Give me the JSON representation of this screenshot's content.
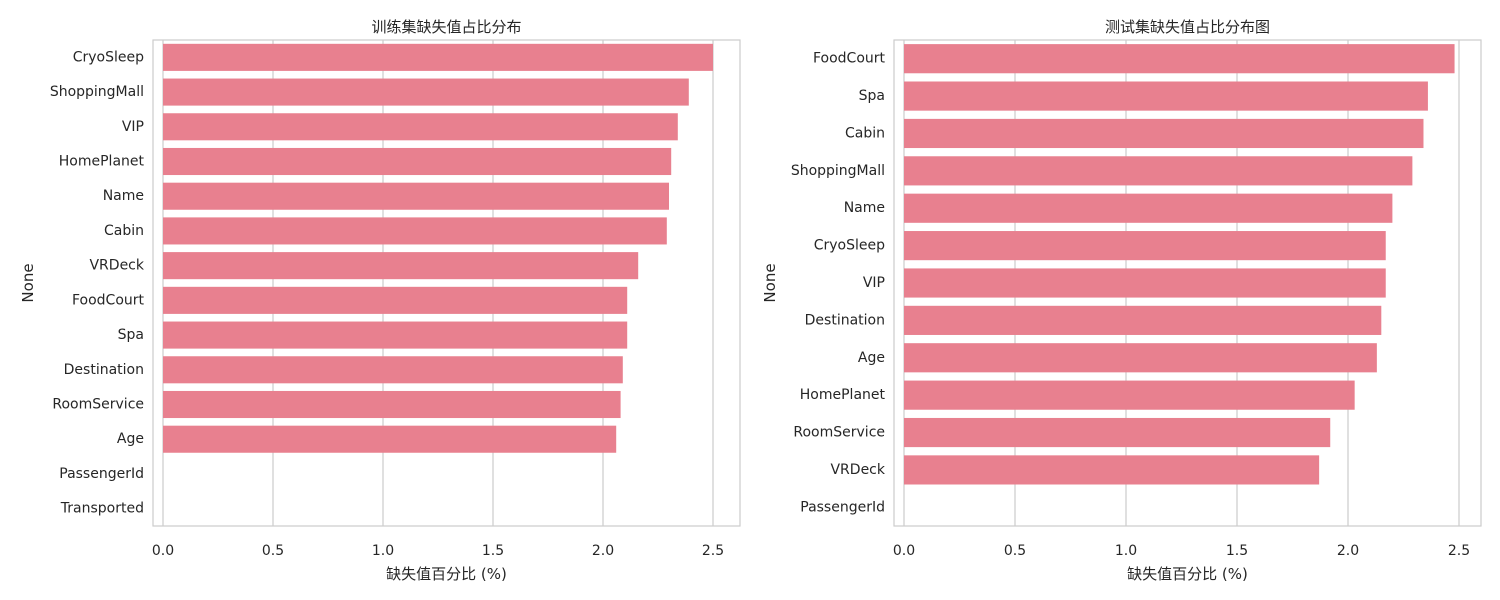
{
  "chart_data": [
    {
      "type": "bar",
      "orientation": "horizontal",
      "title": "训练集缺失值占比分布",
      "xlabel": "缺失值百分比 (%)",
      "ylabel": "None",
      "xlim": [
        0,
        2.62
      ],
      "xticks": [
        "0.0",
        "0.5",
        "1.0",
        "1.5",
        "2.0",
        "2.5"
      ],
      "grid": true,
      "bar_color": "#e8808f",
      "categories": [
        "CryoSleep",
        "ShoppingMall",
        "VIP",
        "HomePlanet",
        "Name",
        "Cabin",
        "VRDeck",
        "FoodCourt",
        "Spa",
        "Destination",
        "RoomService",
        "Age",
        "PassengerId",
        "Transported"
      ],
      "values": [
        2.5,
        2.39,
        2.34,
        2.31,
        2.3,
        2.29,
        2.16,
        2.11,
        2.11,
        2.09,
        2.08,
        2.06,
        0,
        0
      ]
    },
    {
      "type": "bar",
      "orientation": "horizontal",
      "title": "测试集缺失值占比分布图",
      "xlabel": "缺失值百分比 (%)",
      "ylabel": "None",
      "xlim": [
        0,
        2.6
      ],
      "xticks": [
        "0.0",
        "0.5",
        "1.0",
        "1.5",
        "2.0",
        "2.5"
      ],
      "grid": true,
      "bar_color": "#e8808f",
      "categories": [
        "FoodCourt",
        "Spa",
        "Cabin",
        "ShoppingMall",
        "Name",
        "CryoSleep",
        "VIP",
        "Destination",
        "Age",
        "HomePlanet",
        "RoomService",
        "VRDeck",
        "PassengerId"
      ],
      "values": [
        2.48,
        2.36,
        2.34,
        2.29,
        2.2,
        2.17,
        2.17,
        2.15,
        2.13,
        2.03,
        1.92,
        1.87,
        0
      ]
    }
  ]
}
